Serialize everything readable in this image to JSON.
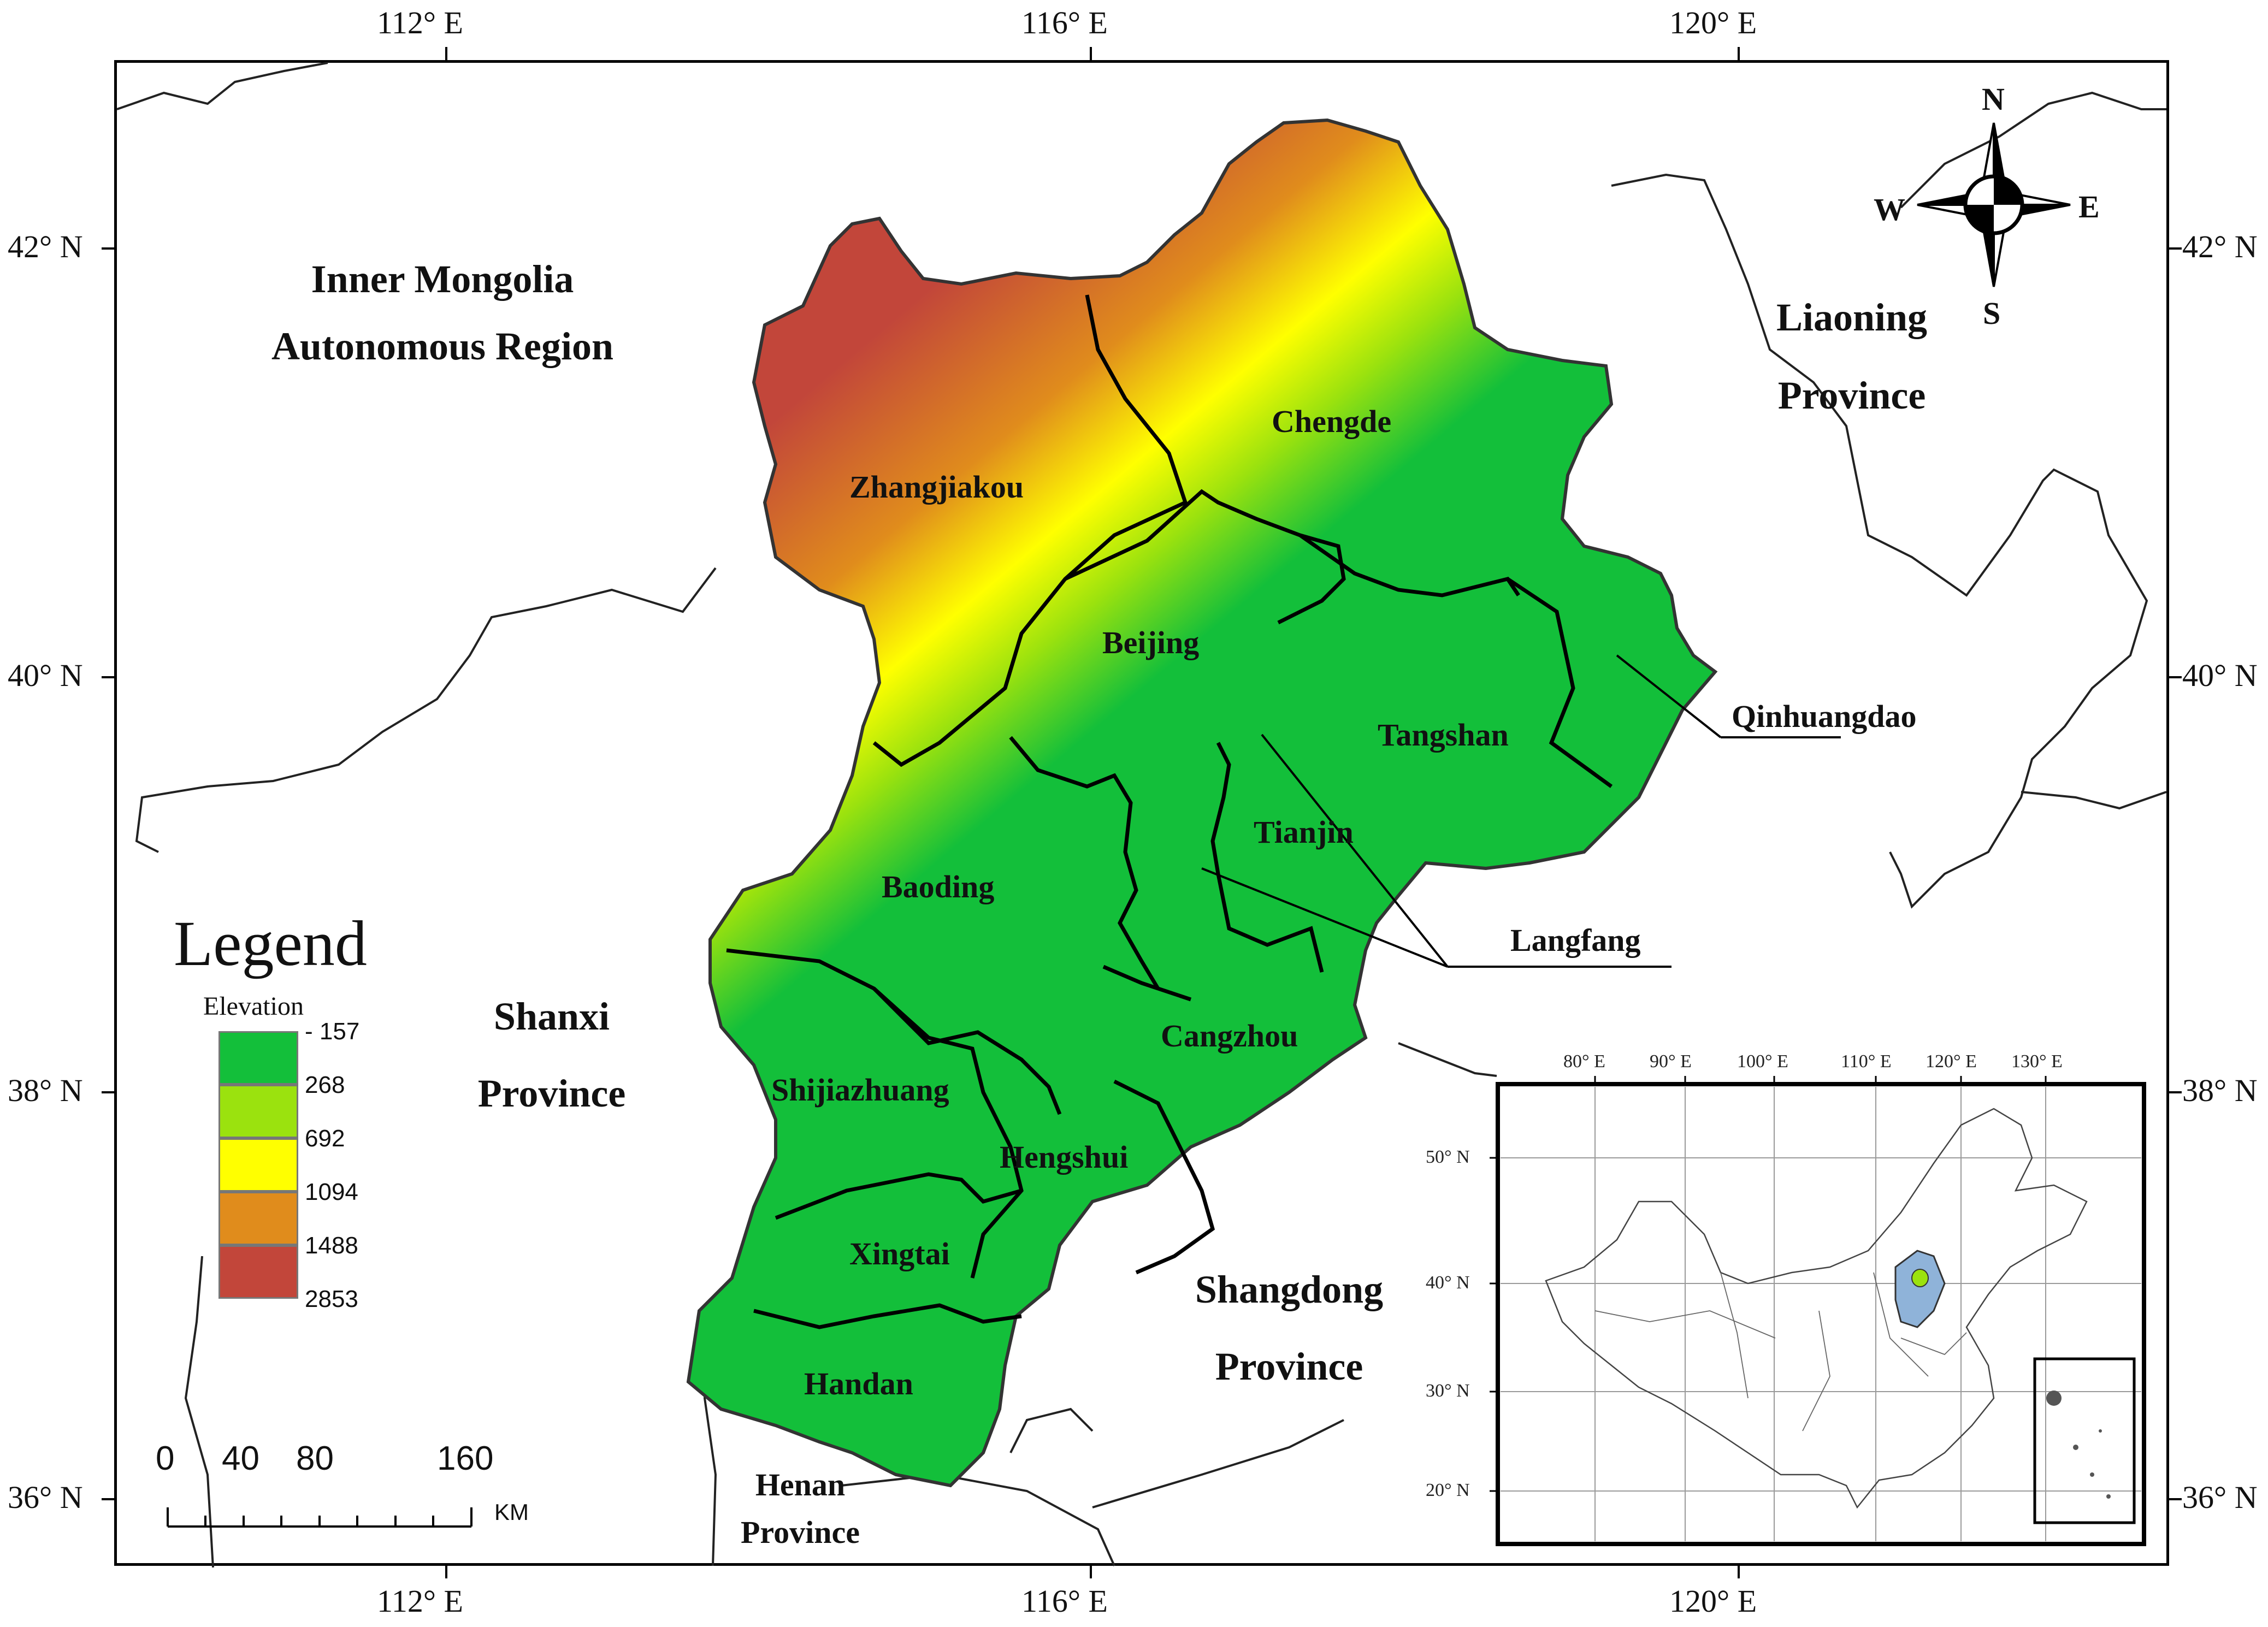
{
  "map": {
    "coords": {
      "top": [
        "112° E",
        "116° E",
        "120° E"
      ],
      "bottom": [
        "112° E",
        "116° E",
        "120° E"
      ],
      "left": [
        "42° N",
        "40° N",
        "38° N",
        "36° N"
      ],
      "right": [
        "42° N",
        "40° N",
        "38° N",
        "36° N"
      ]
    },
    "regions": {
      "inner_mongolia_1": "Inner Mongolia",
      "inner_mongolia_2": "Autonomous Region",
      "liaoning_1": "Liaoning",
      "liaoning_2": "Province",
      "shanxi_1": "Shanxi",
      "shanxi_2": "Province",
      "shandong_1": "Shangdong",
      "shandong_2": "Province",
      "henan_1": "Henan",
      "henan_2": "Province"
    },
    "cities": {
      "zhangjiakou": "Zhangjiakou",
      "chengde": "Chengde",
      "beijing": "Beijing",
      "tangshan": "Tangshan",
      "qinhuangdao": "Qinhuangdao",
      "tianjin": "Tianjin",
      "langfang": "Langfang",
      "baoding": "Baoding",
      "cangzhou": "Cangzhou",
      "shijiazhuang": "Shijiazhuang",
      "hengshui": "Hengshui",
      "xingtai": "Xingtai",
      "handan": "Handan"
    },
    "legend": {
      "title": "Legend",
      "subtitle": "Elevation",
      "items": [
        {
          "value": "- 157",
          "color": "#13bf3a"
        },
        {
          "value": "268",
          "color": "#9be20e"
        },
        {
          "value": "692",
          "color": "#ffff00"
        },
        {
          "value": "1094",
          "color": "#e08c1c"
        },
        {
          "value": "1488",
          "color": "#c2463a"
        },
        {
          "value": "2853",
          "color": null
        }
      ]
    },
    "scale": {
      "labels": [
        "0",
        "40",
        "80",
        "160"
      ],
      "unit": "KM"
    },
    "compass": {
      "n": "N",
      "s": "S",
      "e": "E",
      "w": "W"
    },
    "inset": {
      "top_ticks": [
        "80° E",
        "90° E",
        "100° E",
        "110° E",
        "120° E",
        "130° E"
      ],
      "left_ticks": [
        "50° N",
        "40° N",
        "30° N",
        "20° N"
      ],
      "highlight_color": "#8fb3d9"
    }
  }
}
